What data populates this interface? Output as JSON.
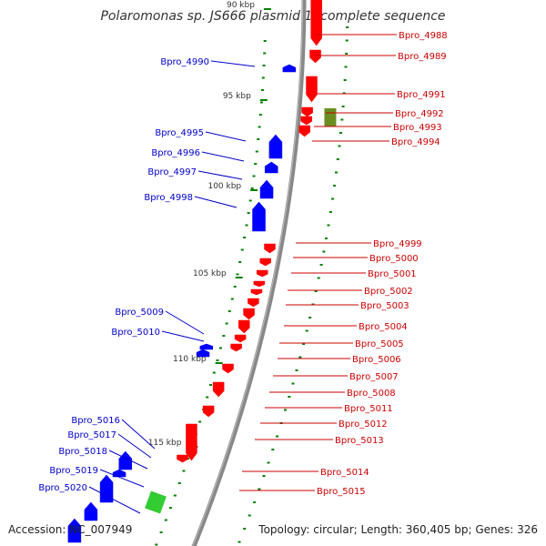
{
  "title": "Polaromonas sp. JS666 plasmid 1, complete sequence",
  "accession_text": "Accession: NC_007949",
  "topology_text": "Topology: circular; Length: 360,405 bp; Genes: 326",
  "colors": {
    "backbone": "#888888",
    "forward_gene": "#ff0000",
    "reverse_gene": "#0000ff",
    "rna_gene": "#33cc33",
    "olive_gene": "#6b8e23",
    "gc_tick": "#008000",
    "label_red": "#cc0000",
    "label_blue": "#0000cc"
  },
  "scale_labels": [
    {
      "text": "90 kbp",
      "kb": 90
    },
    {
      "text": "95 kbp",
      "kb": 95
    },
    {
      "text": "100 kbp",
      "kb": 100
    },
    {
      "text": "105 kbp",
      "kb": 105
    },
    {
      "text": "110 kbp",
      "kb": 110
    },
    {
      "text": "115 kbp",
      "kb": 115
    }
  ],
  "genes_right": [
    "Bpro_4988",
    "Bpro_4989",
    "Bpro_4991",
    "Bpro_4992",
    "Bpro_4993",
    "Bpro_4994",
    "Bpro_4999",
    "Bpro_5000",
    "Bpro_5001",
    "Bpro_5002",
    "Bpro_5003",
    "Bpro_5004",
    "Bpro_5005",
    "Bpro_5006",
    "Bpro_5007",
    "Bpro_5008",
    "Bpro_5011",
    "Bpro_5012",
    "Bpro_5013",
    "Bpro_5014",
    "Bpro_5015"
  ],
  "genes_left": [
    "Bpro_4990",
    "Bpro_4995",
    "Bpro_4996",
    "Bpro_4997",
    "Bpro_4998",
    "Bpro_5009",
    "Bpro_5010",
    "Bpro_5016",
    "Bpro_5017",
    "Bpro_5018",
    "Bpro_5019",
    "Bpro_5020"
  ]
}
